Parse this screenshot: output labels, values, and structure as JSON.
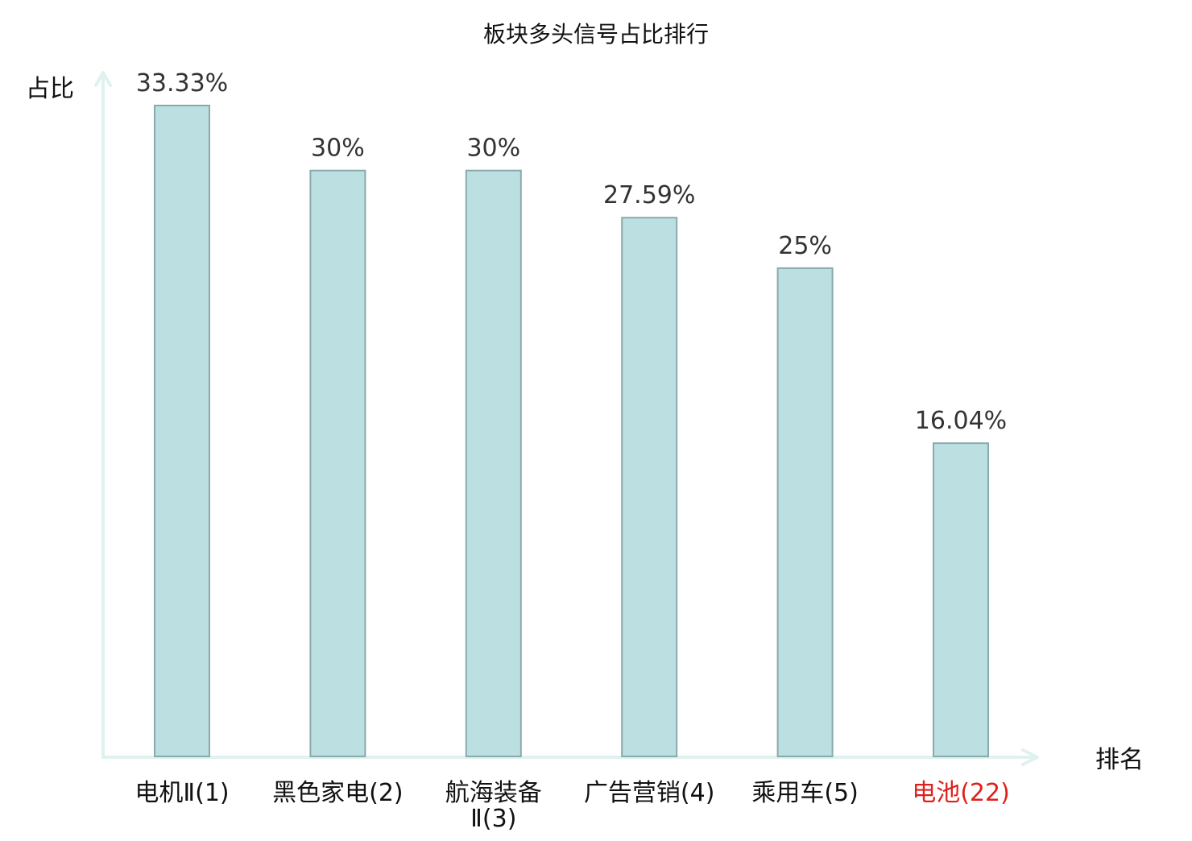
{
  "chart_data": {
    "type": "bar",
    "title": "板块多头信号占比排行",
    "xlabel": "排名",
    "ylabel": "占比",
    "categories": [
      "电机Ⅱ(1)",
      "黑色家电(2)",
      "航海装备Ⅱ(3)",
      "广告营销(4)",
      "乘用车(5)",
      "电池(22)"
    ],
    "category_lines": [
      [
        "电机Ⅱ(1)"
      ],
      [
        "黑色家电(2)"
      ],
      [
        "航海装备",
        "Ⅱ(3)"
      ],
      [
        "广告营销(4)"
      ],
      [
        "乘用车(5)"
      ],
      [
        "电池(22)"
      ]
    ],
    "values": [
      33.33,
      30,
      30,
      27.59,
      25,
      16.04
    ],
    "value_labels": [
      "33.33%",
      "30%",
      "30%",
      "27.59%",
      "25%",
      "16.04%"
    ],
    "highlight_index": 5,
    "ylim": [
      0,
      33.33
    ],
    "grid": false,
    "legend": "none",
    "colors": {
      "bar_fill": "#bce0e2",
      "bar_stroke": "#8aa9ab",
      "axis": "#e0f2f0",
      "highlight_text": "#e0201c",
      "value_text": "#333333",
      "text": "#111111"
    }
  }
}
